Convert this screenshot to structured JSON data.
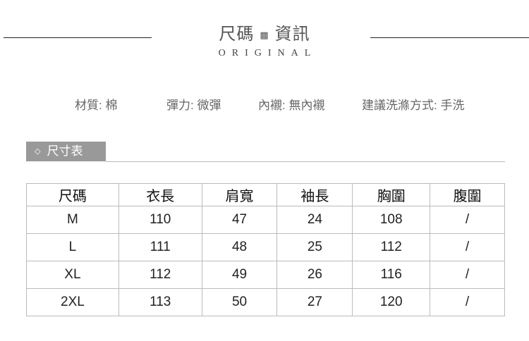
{
  "header": {
    "title_left": "尺碼",
    "ornament": "▩",
    "title_right": "資訊",
    "subtitle": "ORIGINAL"
  },
  "info": [
    {
      "text": "材質: 棉"
    },
    {
      "text": "彈力: 微彈"
    },
    {
      "text": "內襯: 無內襯"
    },
    {
      "text": "建議洗滌方式: 手洗"
    }
  ],
  "section": {
    "icon": "diamond-icon",
    "icon_glyph": "◇",
    "label": "尺寸表",
    "color": "#999999"
  },
  "table": {
    "columns": [
      "尺碼",
      "衣長",
      "肩寬",
      "袖長",
      "胸圍",
      "腹圍"
    ],
    "rows": [
      [
        "M",
        "110",
        "47",
        "24",
        "108",
        "/"
      ],
      [
        "L",
        "111",
        "48",
        "25",
        "112",
        "/"
      ],
      [
        "XL",
        "112",
        "49",
        "26",
        "116",
        "/"
      ],
      [
        "2XL",
        "113",
        "50",
        "27",
        "120",
        "/"
      ]
    ]
  }
}
